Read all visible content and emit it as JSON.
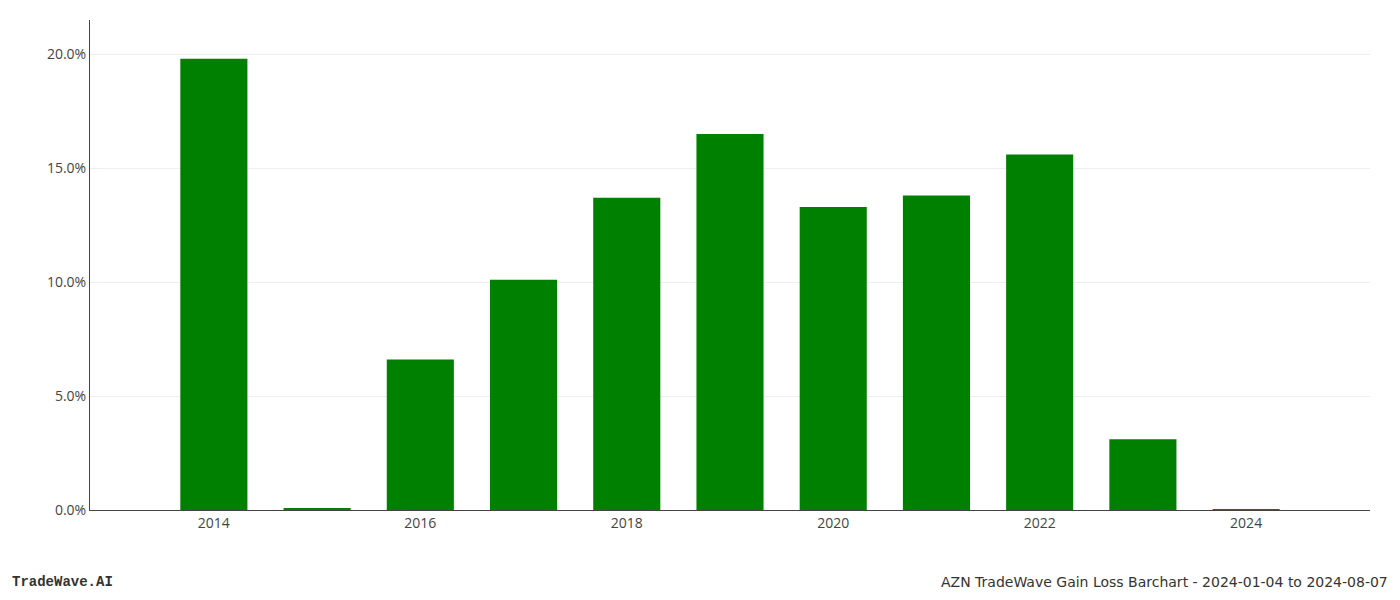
{
  "chart_data": {
    "type": "bar",
    "x": [
      2014,
      2015,
      2016,
      2017,
      2018,
      2019,
      2020,
      2021,
      2022,
      2023,
      2024
    ],
    "values": [
      0.198,
      0.0005,
      0.066,
      0.101,
      0.137,
      0.165,
      0.133,
      0.138,
      0.156,
      0.031,
      0.0002
    ],
    "color": "#008000",
    "xlim": [
      2012.8,
      2025.2
    ],
    "xticks": [
      2014,
      2016,
      2018,
      2020,
      2022,
      2024
    ],
    "ylim": [
      0,
      0.215
    ],
    "yticks": [
      {
        "value": 0.0,
        "label": "0.0%"
      },
      {
        "value": 0.05,
        "label": "5.0%"
      },
      {
        "value": 0.1,
        "label": "10.0%"
      },
      {
        "value": 0.15,
        "label": "15.0%"
      },
      {
        "value": 0.2,
        "label": "20.0%"
      }
    ],
    "grid": "y",
    "annotations": [
      "TradeWave.AI",
      "AZN TradeWave Gain Loss Barchart - 2024-01-04 to 2024-08-07"
    ]
  }
}
